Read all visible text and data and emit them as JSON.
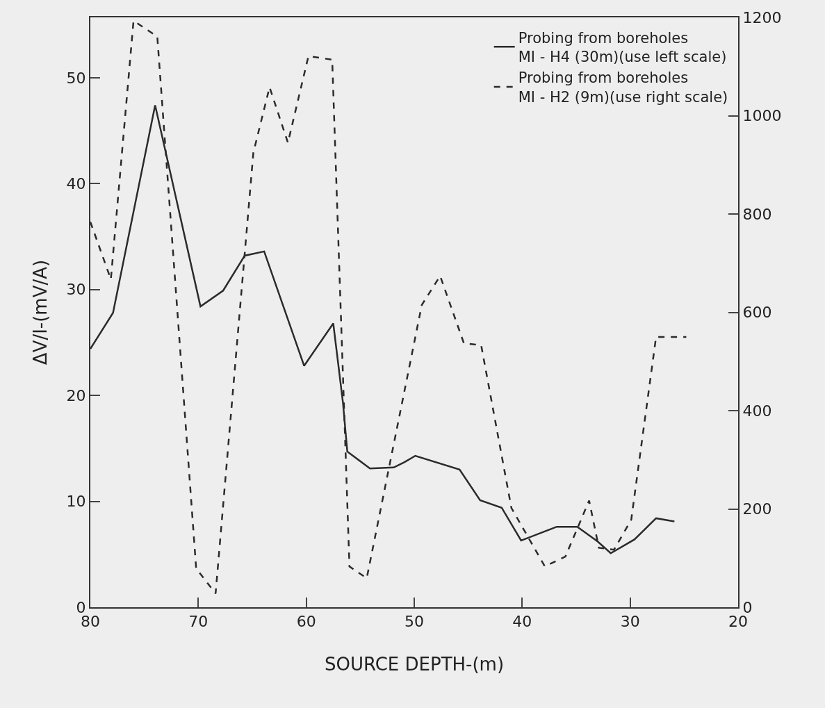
{
  "chart_data": {
    "type": "line",
    "xlabel": "SOURCE DEPTH-(m)",
    "ylabel": "ΔV/I-(mV/A)",
    "xlim": [
      80,
      20
    ],
    "xticks": [
      80,
      70,
      60,
      50,
      40,
      30,
      20
    ],
    "ylim": [
      0,
      55.7
    ],
    "yticks": [
      0,
      10,
      20,
      30,
      40,
      50
    ],
    "y2lim": [
      0,
      1200
    ],
    "y2ticks": [
      0,
      200,
      400,
      600,
      800,
      1000,
      1200
    ],
    "legend": "top right",
    "grid": false,
    "series": [
      {
        "name": "Probing from boreholes\nMI - H4 (30m)(use left scale)",
        "color": "#2b2b2b",
        "line_style": "solid",
        "x": [
          80,
          77.9,
          74.0,
          69.8,
          67.7,
          65.7,
          63.9,
          60.2,
          57.5,
          56.6,
          56.2,
          54.1,
          51.9,
          50.9,
          49.9,
          45.8,
          43.9,
          41.9,
          40.1,
          36.8,
          34.9,
          33.0,
          31.8,
          29.6,
          27.6,
          25.9
        ],
        "values": [
          24.4,
          27.8,
          47.4,
          28.4,
          29.9,
          33.2,
          33.6,
          22.8,
          26.8,
          19.3,
          14.7,
          13.1,
          13.2,
          13.7,
          14.3,
          13.0,
          10.1,
          9.4,
          6.3,
          7.6,
          7.6,
          6.2,
          5.1,
          6.4,
          8.4,
          8.1
        ]
      },
      {
        "name": "Probing from boreholes\nMI - H2 (9m)(use right scale)",
        "color": "#2b2b2b",
        "line_style": "dashed",
        "axis": "y2",
        "x": [
          80,
          78.1,
          76.0,
          73.8,
          70.2,
          68.4,
          64.9,
          63.4,
          61.7,
          59.8,
          57.6,
          56.0,
          54.4,
          49.3,
          47.6,
          45.4,
          43.8,
          41.0,
          37.9,
          36.0,
          33.8,
          32.9,
          31.5,
          29.9,
          27.6,
          24.8
        ],
        "values": [
          784,
          667,
          1193,
          1161,
          79,
          28,
          925,
          1058,
          945,
          1121,
          1114,
          83,
          59,
          615,
          674,
          537,
          533,
          202,
          83,
          103,
          217,
          121,
          117,
          178,
          550,
          550
        ]
      }
    ]
  }
}
